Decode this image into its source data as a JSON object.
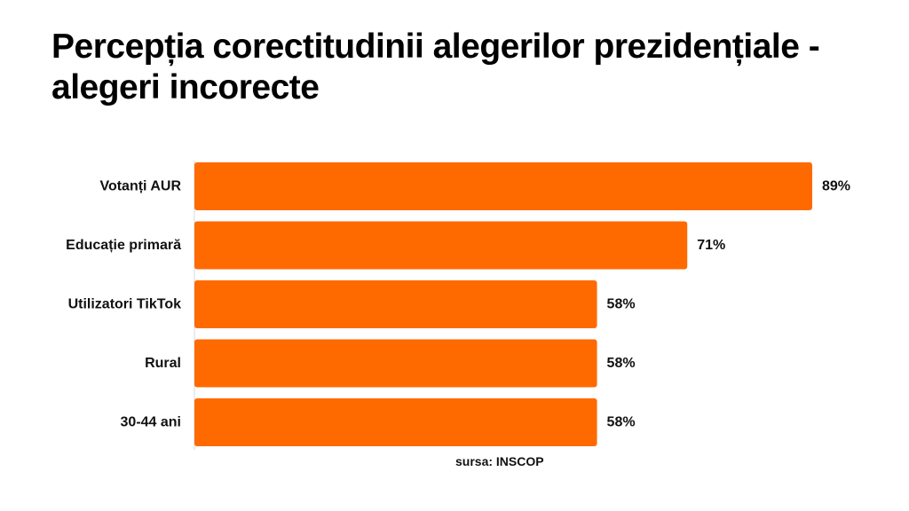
{
  "chart_data": {
    "type": "bar",
    "orientation": "horizontal",
    "title": "Percepția corectitudinii alegerilor prezidențiale - alegeri incorecte",
    "categories": [
      "Votanți AUR",
      "Educație primară",
      "Utilizatori TikTok",
      "Rural",
      "30-44 ani"
    ],
    "values": [
      89,
      71,
      58,
      58,
      58
    ],
    "value_labels": [
      "89%",
      "71%",
      "58%",
      "58%",
      "58%"
    ],
    "unit": "%",
    "xlim": [
      0,
      100
    ],
    "grid": false,
    "legend": "none",
    "bar_color": "#FF6A00",
    "axis_color": "#d9d9d9"
  },
  "source": "sursa: INSCOP"
}
